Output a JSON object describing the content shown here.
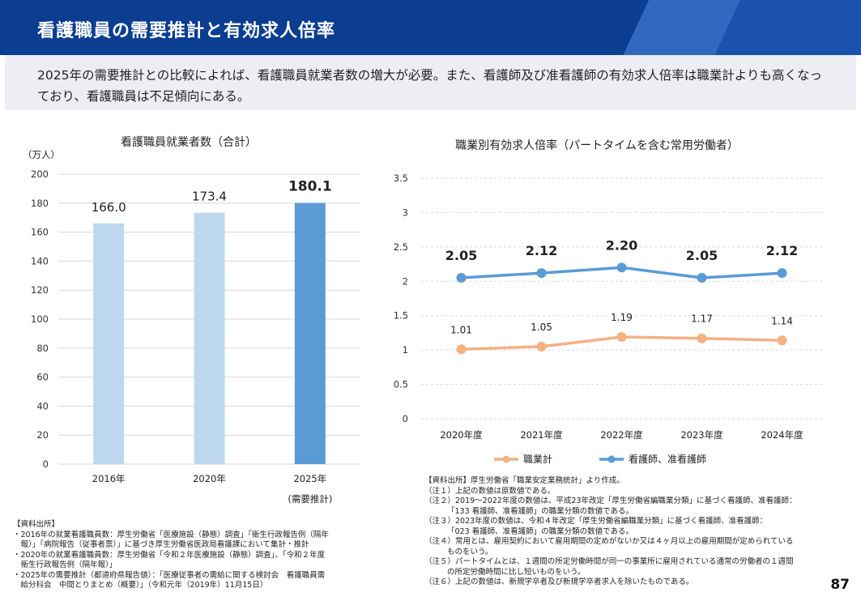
{
  "header": {
    "title": "看護職員の需要推計と有効求人倍率"
  },
  "summary": {
    "text": "2025年の需要推計との比較によれば、看護職員就業者数の増大が必要。また、看護師及び准看護師の有効求人倍率は職業計よりも高くなっており、看護職員は不足傾向にある。"
  },
  "chart_data": [
    {
      "type": "bar",
      "title": "看護職員就業者数（合計）",
      "yunit": "（万人）",
      "categories": [
        "2016年",
        "2020年",
        "2025年"
      ],
      "category_note": "(需要推計)",
      "values": [
        166.0,
        173.4,
        180.1
      ],
      "value_labels": [
        "166.0",
        "173.4",
        "180.1"
      ],
      "ylim": [
        0,
        200
      ],
      "yticks": [
        0,
        20,
        40,
        60,
        80,
        100,
        120,
        140,
        160,
        180,
        200
      ],
      "grid": true,
      "colors": [
        "#bdd7ee",
        "#bdd7ee",
        "#5b9bd5"
      ]
    },
    {
      "type": "line",
      "title": "職業別有効求人倍率（パートタイムを含む常用労働者）",
      "categories": [
        "2020年度",
        "2021年度",
        "2022年度",
        "2023年度",
        "2024年度"
      ],
      "ylim": [
        0,
        3.5
      ],
      "yticks": [
        "0",
        "0.5",
        "1",
        "1.5",
        "2",
        "2.5",
        "3",
        "3.5"
      ],
      "grid": true,
      "legend_position": "bottom",
      "series": [
        {
          "name": "職業計",
          "values": [
            1.01,
            1.05,
            1.19,
            1.17,
            1.14
          ],
          "labels": [
            "1.01",
            "1.05",
            "1.19",
            "1.17",
            "1.14"
          ],
          "color": "#f4b183"
        },
        {
          "name": "看護師、准看護師",
          "values": [
            2.05,
            2.12,
            2.2,
            2.05,
            2.12
          ],
          "labels": [
            "2.05",
            "2.12",
            "2.20",
            "2.05",
            "2.12"
          ],
          "color": "#5b9bd5"
        }
      ]
    }
  ],
  "sources_left": [
    "【資料出所】",
    "・2016年の就業看護職員数：厚生労働省「医療施設（静態）調査」「衛生行政報告例（隔年",
    "　報）」「病院報告（従事者票）」に基づき厚生労働省医政局看護課において集計・推計",
    "・2020年の就業看護職員数：厚生労働省「令和２年医療施設（静態）調査」、「令和２年度",
    "　衛生行政報告例（隔年報）」",
    "・2025年の需要推計（都道府県報告値）：「医療従事者の需給に関する検討会　看護職員需",
    "　給分科会　中間とりまとめ（概要）」（令和元年（2019年）11月15日）"
  ],
  "sources_right": [
    {
      "text": "【資料出所】厚生労働省「職業安定業務統計」より作成。",
      "indent": false
    },
    {
      "text": "（注１）上記の数値は原数値である。",
      "indent": false
    },
    {
      "text": "（注２）2019～2022年度の数値は、平成23年改定「厚生労働省編職業分類」に基づく看護師、准看護師：",
      "indent": false
    },
    {
      "text": "「133 看護師、准看護師」の職業分類の数値である。",
      "indent": true
    },
    {
      "text": "（注３）2023年度の数値は、令和４年改定「厚生労働省編職業分類」に基づく看護師、准看護師：",
      "indent": false
    },
    {
      "text": "「023 看護師、准看護師」の職業分類の数値である。",
      "indent": true
    },
    {
      "text": "（注４）常用とは、雇用契約において雇用期間の定めがないか又は４ヶ月以上の雇用期間が定められている",
      "indent": false
    },
    {
      "text": "ものをいう。",
      "indent": true
    },
    {
      "text": "（注５）パートタイムとは、１週間の所定労働時間が同一の事業所に雇用されている通常の労働者の１週間",
      "indent": false
    },
    {
      "text": "の所定労働時間に比し短いものをいう。",
      "indent": true
    },
    {
      "text": "（注６）上記の数値は、新規学卒者及び新規学卒者求人を除いたものである。",
      "indent": false
    }
  ],
  "page_number": "87"
}
